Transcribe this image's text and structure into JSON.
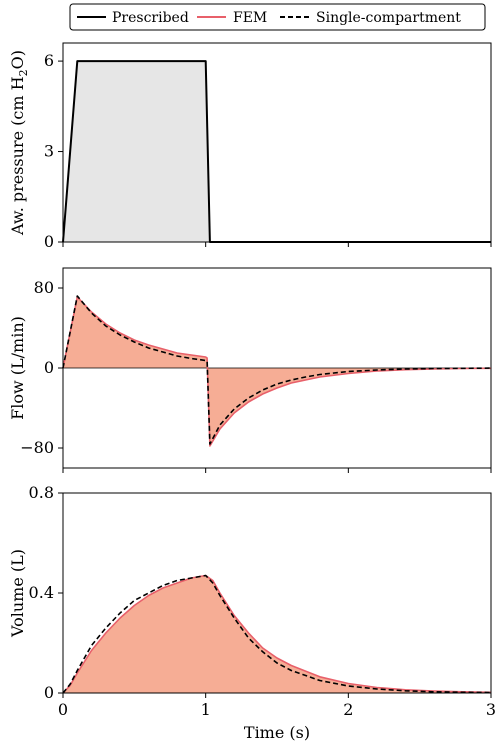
{
  "legend": {
    "entries": [
      {
        "label": "Prescribed",
        "color": "#000000",
        "style": "solid"
      },
      {
        "label": "FEM",
        "color": "#e8606a",
        "style": "solid"
      },
      {
        "label": "Single-compartment",
        "color": "#000000",
        "style": "dashed"
      }
    ],
    "placement": "top"
  },
  "fill_colors": {
    "pressure": "#e6e6e6",
    "flow": "#f6ad95",
    "volume": "#f6ad95"
  },
  "chart_data": [
    {
      "type": "line",
      "ylabel_parts": [
        "Aw. pressure (cm H",
        "2",
        "O)"
      ],
      "xlim": [
        0,
        3
      ],
      "ylim": [
        0,
        6.6
      ],
      "yticks": [
        0,
        3,
        6
      ],
      "ytick_labels": [
        "0",
        "3",
        "6"
      ],
      "xticks": [
        0,
        1,
        2,
        3
      ],
      "series": [
        {
          "name": "Prescribed",
          "x": [
            0,
            0.1,
            1.0,
            1.03,
            3.0
          ],
          "y": [
            0,
            6,
            6,
            0,
            0
          ]
        }
      ]
    },
    {
      "type": "area",
      "ylabel": "Flow (L/min)",
      "xlim": [
        0,
        3
      ],
      "ylim": [
        -100,
        100
      ],
      "yticks": [
        -80,
        0,
        80
      ],
      "ytick_labels": [
        "−80",
        "0",
        "80"
      ],
      "xticks": [
        0,
        1,
        2,
        3
      ],
      "zero_line": true,
      "series": [
        {
          "name": "FEM",
          "x": [
            0,
            0.1,
            0.2,
            0.3,
            0.4,
            0.5,
            0.6,
            0.7,
            0.8,
            0.9,
            1.0,
            1.01,
            1.03,
            1.1,
            1.2,
            1.3,
            1.4,
            1.5,
            1.6,
            1.7,
            1.8,
            2.0,
            2.2,
            2.4,
            2.6,
            2.8,
            3.0
          ],
          "y": [
            0,
            71,
            56,
            44,
            35,
            28,
            23,
            19,
            15,
            13,
            11,
            10,
            -78,
            -61,
            -45,
            -34,
            -26,
            -20,
            -15,
            -12,
            -9,
            -5.5,
            -3,
            -1.7,
            -1,
            -0.5,
            -0.3
          ]
        },
        {
          "name": "Single-compartment",
          "x": [
            0,
            0.1,
            0.2,
            0.3,
            0.4,
            0.5,
            0.6,
            0.7,
            0.8,
            0.9,
            1.0,
            1.01,
            1.03,
            1.1,
            1.2,
            1.3,
            1.4,
            1.5,
            1.6,
            1.7,
            1.8,
            2.0,
            2.2,
            2.4,
            2.6,
            2.8,
            3.0
          ],
          "y": [
            0,
            72,
            55,
            42,
            33,
            26,
            20,
            16,
            12,
            9.5,
            7.5,
            7,
            -76,
            -57,
            -41,
            -30,
            -22,
            -16,
            -12,
            -9,
            -6.5,
            -3.5,
            -2,
            -1,
            -0.5,
            -0.3,
            -0.1
          ]
        }
      ]
    },
    {
      "type": "area",
      "ylabel": "Volume (L)",
      "xlabel": "Time (s)",
      "xlim": [
        0,
        3
      ],
      "ylim": [
        0,
        0.8
      ],
      "yticks": [
        0,
        0.4,
        0.8
      ],
      "ytick_labels": [
        "0",
        "0.4",
        "0.8"
      ],
      "xticks": [
        0,
        1,
        2,
        3
      ],
      "xtick_labels": [
        "0",
        "1",
        "2",
        "3"
      ],
      "series": [
        {
          "name": "FEM",
          "x": [
            0,
            0.05,
            0.1,
            0.2,
            0.3,
            0.4,
            0.5,
            0.6,
            0.7,
            0.8,
            0.9,
            1.0,
            1.05,
            1.1,
            1.2,
            1.3,
            1.4,
            1.5,
            1.6,
            1.8,
            2.0,
            2.2,
            2.4,
            2.6,
            2.8,
            3.0
          ],
          "y": [
            0,
            0.03,
            0.08,
            0.17,
            0.24,
            0.3,
            0.35,
            0.39,
            0.42,
            0.44,
            0.46,
            0.47,
            0.45,
            0.4,
            0.31,
            0.24,
            0.18,
            0.14,
            0.11,
            0.065,
            0.038,
            0.022,
            0.013,
            0.008,
            0.005,
            0.003
          ]
        },
        {
          "name": "Single-compartment",
          "x": [
            0,
            0.05,
            0.1,
            0.2,
            0.3,
            0.4,
            0.5,
            0.6,
            0.7,
            0.8,
            0.9,
            1.0,
            1.05,
            1.1,
            1.2,
            1.3,
            1.4,
            1.5,
            1.6,
            1.8,
            2.0,
            2.2,
            2.4,
            2.6,
            2.8,
            3.0
          ],
          "y": [
            0,
            0.035,
            0.09,
            0.19,
            0.26,
            0.32,
            0.37,
            0.4,
            0.43,
            0.45,
            0.46,
            0.47,
            0.44,
            0.39,
            0.3,
            0.22,
            0.165,
            0.12,
            0.09,
            0.05,
            0.028,
            0.016,
            0.009,
            0.005,
            0.003,
            0.002
          ]
        }
      ]
    }
  ]
}
